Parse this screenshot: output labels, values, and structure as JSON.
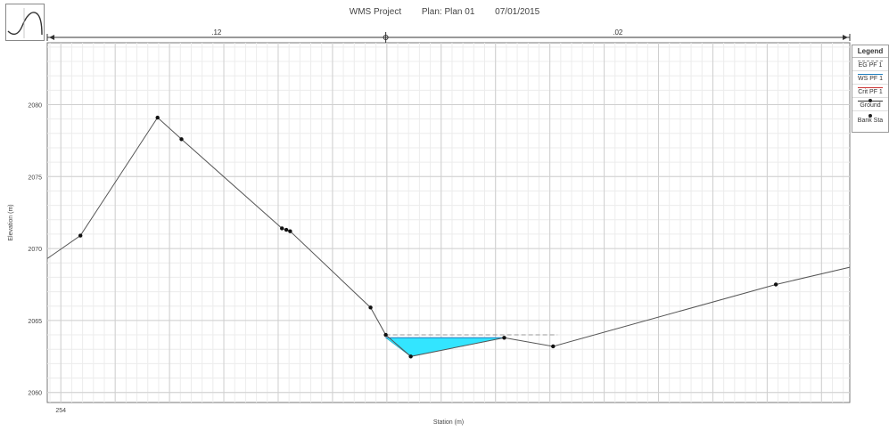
{
  "title": {
    "project": "WMS Project",
    "plan": "Plan: Plan 01",
    "date": "07/01/2015"
  },
  "chart_data": {
    "type": "line",
    "xlabel": "Station (m)",
    "ylabel": "Elevation (m)",
    "xlim": [
      251.5,
      399.2
    ],
    "ylim": [
      2059.3,
      2084.3
    ],
    "xticks": [
      254,
      264,
      274,
      284,
      294
    ],
    "xtick_labels": [
      "254",
      "",
      "",
      "",
      ""
    ],
    "yticks": [
      2060,
      2065,
      2070,
      2075,
      2080
    ],
    "ytick_labels": [
      "2060",
      "2065",
      "2070",
      "2075",
      "2080"
    ],
    "grid": true,
    "ground": {
      "name": "Ground",
      "x": [
        251.5,
        257.6,
        271.8,
        276.2,
        294.7,
        295.5,
        296.2,
        311.0,
        313.8,
        318.4,
        335.6,
        344.6,
        385.6,
        399.2
      ],
      "y": [
        2069.3,
        2070.9,
        2079.1,
        2077.6,
        2071.4,
        2071.3,
        2071.2,
        2065.9,
        2064.0,
        2062.5,
        2063.8,
        2063.2,
        2067.5,
        2068.7
      ]
    },
    "points": {
      "x": [
        257.6,
        271.8,
        276.2,
        294.7,
        295.5,
        296.2,
        311.0,
        313.8,
        318.4,
        335.6,
        344.6,
        385.6
      ],
      "y": [
        2070.9,
        2079.1,
        2077.6,
        2071.4,
        2071.3,
        2071.2,
        2065.9,
        2064.0,
        2062.5,
        2063.8,
        2063.2,
        2067.5
      ]
    },
    "water_surface": {
      "name": "WS PF 1",
      "elevation": 2063.8,
      "x_start": 313.8,
      "x_end": 335.6,
      "color": "#33e5ff"
    },
    "energy_grade": {
      "name": "EG PF 1",
      "elevation": 2064.0,
      "x_start": 313.8,
      "x_end": 345.4
    },
    "bank_stations": {
      "name": "Bank Sta",
      "top_labels": [
        ".12",
        ".02"
      ],
      "x_marker": 313.8
    },
    "legend": {
      "title": "Legend",
      "placement": "right",
      "items": [
        "EG PF 1",
        "WS PF 1",
        "Crit PF 1",
        "Ground",
        "Bank Sta"
      ]
    }
  }
}
